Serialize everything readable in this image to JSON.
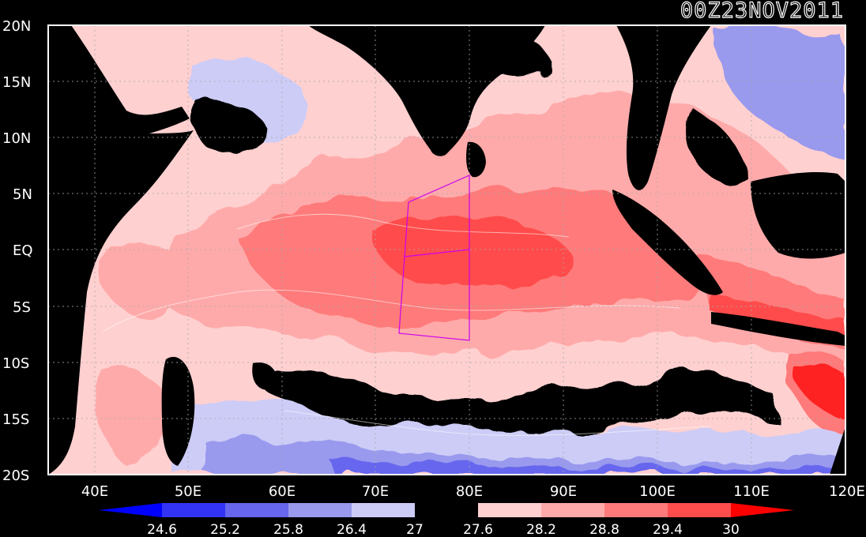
{
  "timestamp": "00Z23NOV2011",
  "lat_labels": [
    "20N",
    "15N",
    "10N",
    "5N",
    "EQ",
    "5S",
    "10S",
    "15S",
    "20S"
  ],
  "lon_labels": [
    "40E",
    "50E",
    "60E",
    "70E",
    "80E",
    "90E",
    "100E",
    "110E",
    "120E"
  ],
  "colorbar": {
    "levels": [
      "24.6",
      "25.2",
      "25.8",
      "26.4",
      "27",
      "27.6",
      "28.2",
      "28.8",
      "29.4",
      "30"
    ],
    "colors": [
      "#0000ff",
      "#3333f5",
      "#6666ee",
      "#9999ee",
      "#ccccf7",
      "#000000",
      "#ffd0d0",
      "#ffaaaa",
      "#ff7a7a",
      "#ff4c4c",
      "#ff0000"
    ]
  },
  "colors": {
    "land": "#000000",
    "frame": "#ffffff",
    "box": "#cc00ee"
  }
}
